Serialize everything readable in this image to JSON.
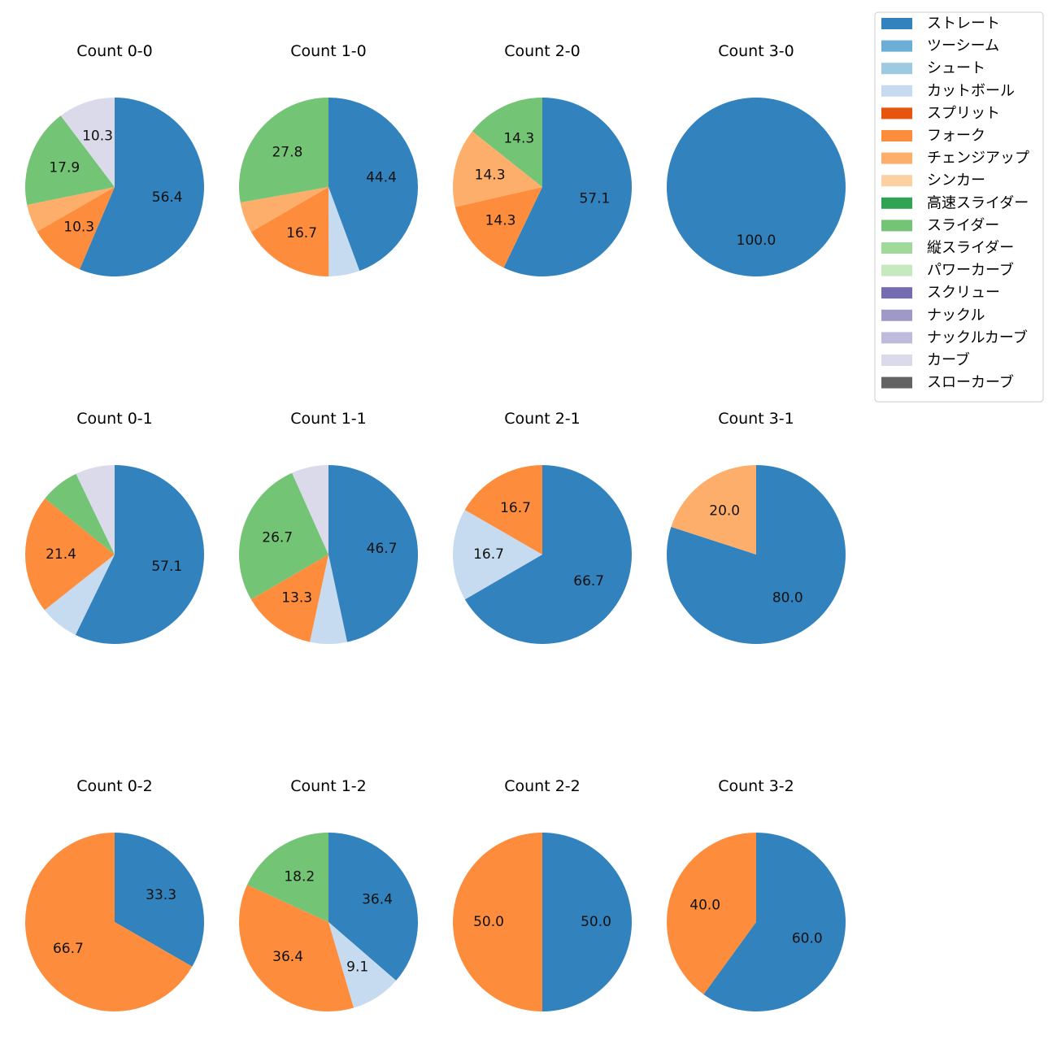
{
  "legend": [
    {
      "name": "ストレート",
      "color": "#3182bd"
    },
    {
      "name": "ツーシーム",
      "color": "#6baed6"
    },
    {
      "name": "シュート",
      "color": "#9ecae1"
    },
    {
      "name": "カットボール",
      "color": "#c6dbef"
    },
    {
      "name": "スプリット",
      "color": "#e6550d"
    },
    {
      "name": "フォーク",
      "color": "#fd8d3c"
    },
    {
      "name": "チェンジアップ",
      "color": "#fdae6b"
    },
    {
      "name": "シンカー",
      "color": "#fdd0a2"
    },
    {
      "name": "高速スライダー",
      "color": "#31a354"
    },
    {
      "name": "スライダー",
      "color": "#74c476"
    },
    {
      "name": "縦スライダー",
      "color": "#a1d99b"
    },
    {
      "name": "パワーカーブ",
      "color": "#c7e9c0"
    },
    {
      "name": "スクリュー",
      "color": "#756bb1"
    },
    {
      "name": "ナックル",
      "color": "#9e9ac8"
    },
    {
      "name": "ナックルカーブ",
      "color": "#bcbddc"
    },
    {
      "name": "カーブ",
      "color": "#dadaeb"
    },
    {
      "name": "スローカーブ",
      "color": "#636363"
    }
  ],
  "chart_data": [
    {
      "type": "pie",
      "title": "Count 0-0",
      "slices": [
        {
          "category": "ストレート",
          "value": 56.4,
          "label": "56.4"
        },
        {
          "category": "フォーク",
          "value": 10.3,
          "label": "10.3"
        },
        {
          "category": "チェンジアップ",
          "value": 5.1,
          "label": ""
        },
        {
          "category": "スライダー",
          "value": 17.9,
          "label": "17.9"
        },
        {
          "category": "カーブ",
          "value": 10.3,
          "label": "10.3"
        }
      ]
    },
    {
      "type": "pie",
      "title": "Count 1-0",
      "slices": [
        {
          "category": "ストレート",
          "value": 44.4,
          "label": "44.4"
        },
        {
          "category": "カットボール",
          "value": 5.6,
          "label": ""
        },
        {
          "category": "フォーク",
          "value": 16.7,
          "label": "16.7"
        },
        {
          "category": "チェンジアップ",
          "value": 5.6,
          "label": ""
        },
        {
          "category": "スライダー",
          "value": 27.8,
          "label": "27.8"
        }
      ]
    },
    {
      "type": "pie",
      "title": "Count 2-0",
      "slices": [
        {
          "category": "ストレート",
          "value": 57.1,
          "label": "57.1"
        },
        {
          "category": "フォーク",
          "value": 14.3,
          "label": "14.3"
        },
        {
          "category": "チェンジアップ",
          "value": 14.3,
          "label": "14.3"
        },
        {
          "category": "スライダー",
          "value": 14.3,
          "label": "14.3"
        }
      ]
    },
    {
      "type": "pie",
      "title": "Count 3-0",
      "slices": [
        {
          "category": "ストレート",
          "value": 100.0,
          "label": "100.0"
        }
      ]
    },
    {
      "type": "pie",
      "title": "Count 0-1",
      "slices": [
        {
          "category": "ストレート",
          "value": 57.1,
          "label": "57.1"
        },
        {
          "category": "カットボール",
          "value": 7.1,
          "label": ""
        },
        {
          "category": "フォーク",
          "value": 21.4,
          "label": "21.4"
        },
        {
          "category": "スライダー",
          "value": 7.1,
          "label": ""
        },
        {
          "category": "カーブ",
          "value": 7.1,
          "label": ""
        }
      ]
    },
    {
      "type": "pie",
      "title": "Count 1-1",
      "slices": [
        {
          "category": "ストレート",
          "value": 46.7,
          "label": "46.7"
        },
        {
          "category": "カットボール",
          "value": 6.7,
          "label": ""
        },
        {
          "category": "フォーク",
          "value": 13.3,
          "label": "13.3"
        },
        {
          "category": "スライダー",
          "value": 26.7,
          "label": "26.7"
        },
        {
          "category": "カーブ",
          "value": 6.7,
          "label": ""
        }
      ]
    },
    {
      "type": "pie",
      "title": "Count 2-1",
      "slices": [
        {
          "category": "ストレート",
          "value": 66.7,
          "label": "66.7"
        },
        {
          "category": "カットボール",
          "value": 16.7,
          "label": "16.7"
        },
        {
          "category": "フォーク",
          "value": 16.7,
          "label": "16.7"
        }
      ]
    },
    {
      "type": "pie",
      "title": "Count 3-1",
      "slices": [
        {
          "category": "ストレート",
          "value": 80.0,
          "label": "80.0"
        },
        {
          "category": "チェンジアップ",
          "value": 20.0,
          "label": "20.0"
        }
      ]
    },
    {
      "type": "pie",
      "title": "Count 0-2",
      "slices": [
        {
          "category": "ストレート",
          "value": 33.3,
          "label": "33.3"
        },
        {
          "category": "フォーク",
          "value": 66.7,
          "label": "66.7"
        }
      ]
    },
    {
      "type": "pie",
      "title": "Count 1-2",
      "slices": [
        {
          "category": "ストレート",
          "value": 36.4,
          "label": "36.4"
        },
        {
          "category": "カットボール",
          "value": 9.1,
          "label": "9.1"
        },
        {
          "category": "フォーク",
          "value": 36.4,
          "label": "36.4"
        },
        {
          "category": "スライダー",
          "value": 18.2,
          "label": "18.2"
        }
      ]
    },
    {
      "type": "pie",
      "title": "Count 2-2",
      "slices": [
        {
          "category": "ストレート",
          "value": 50.0,
          "label": "50.0"
        },
        {
          "category": "フォーク",
          "value": 50.0,
          "label": "50.0"
        }
      ]
    },
    {
      "type": "pie",
      "title": "Count 3-2",
      "slices": [
        {
          "category": "ストレート",
          "value": 60.0,
          "label": "60.0"
        },
        {
          "category": "フォーク",
          "value": 40.0,
          "label": "40.0"
        }
      ]
    }
  ]
}
